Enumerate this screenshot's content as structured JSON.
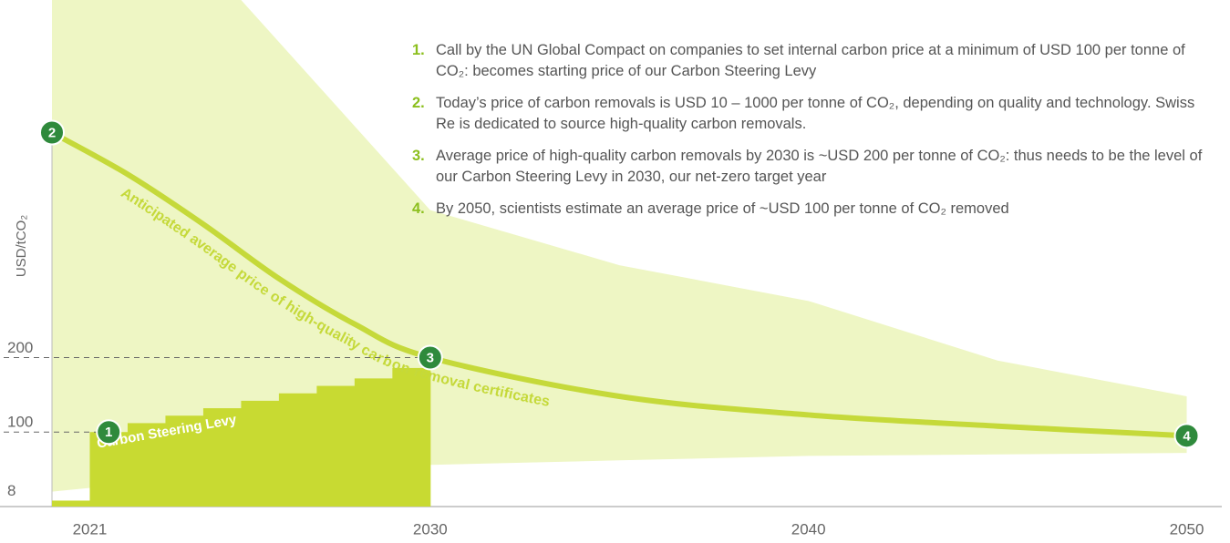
{
  "chart_data": {
    "type": "price-path",
    "y_label": "USD/tCO₂",
    "xlim": [
      2020,
      2051
    ],
    "ylim": [
      0,
      680
    ],
    "xticks": [
      2021,
      2030,
      2040,
      2050
    ],
    "yticks": [
      8,
      100,
      200
    ],
    "band": {
      "color": "#eef6c4",
      "x": [
        2020,
        2025,
        2030,
        2035,
        2040,
        2045,
        2050
      ],
      "lower": [
        20,
        45,
        56,
        62,
        68,
        70,
        72
      ],
      "upper": [
        680,
        680,
        398,
        324,
        276,
        196,
        148
      ]
    },
    "levy": {
      "name": "Carbon Steering Levy",
      "color": "#c8da32",
      "x": [
        2020,
        2021,
        2022,
        2023,
        2024,
        2025,
        2026,
        2027,
        2028,
        2029
      ],
      "values": [
        8,
        100,
        112,
        122,
        132,
        142,
        152,
        162,
        172,
        186
      ]
    },
    "curve": {
      "name": "Anticipated average price of high-quality carbon removal certificates",
      "color": "#c5d93a",
      "x": [
        2020,
        2022,
        2024,
        2026,
        2028,
        2030,
        2035,
        2040,
        2045,
        2050
      ],
      "values": [
        502,
        446,
        379,
        306,
        245,
        200,
        148,
        123,
        108,
        95
      ]
    },
    "marker_color": "#2f8a3c",
    "markers": [
      {
        "label": "1",
        "x": 2021.5,
        "y": 100
      },
      {
        "label": "2",
        "x": 2020,
        "y": 502
      },
      {
        "label": "3",
        "x": 2030,
        "y": 200
      },
      {
        "label": "4",
        "x": 2050,
        "y": 95
      }
    ],
    "notes": [
      {
        "number": "1.",
        "text": "Call by the UN Global Compact on companies to set internal carbon price at a minimum of USD 100 per tonne of CO₂: becomes starting price of our Carbon Steering Levy"
      },
      {
        "number": "2.",
        "text": "Today’s price of carbon removals is USD 10 – 1000 per tonne of CO₂, depending on quality and technology. Swiss Re is dedicated to source high-quality carbon removals."
      },
      {
        "number": "3.",
        "text": "Average price of high-quality carbon removals by 2030 is ~USD 200 per tonne of CO₂: thus needs to be the level of our Carbon Steering Levy in 2030, our net-zero target year"
      },
      {
        "number": "4.",
        "text": "By 2050, scientists estimate an average price of ~USD 100 per tonne of CO₂ removed"
      }
    ]
  }
}
